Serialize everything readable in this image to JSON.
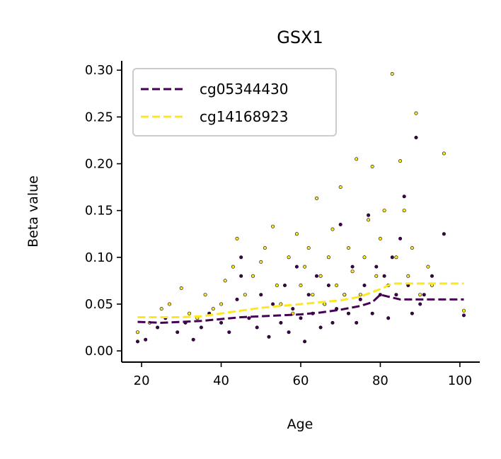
{
  "chart_data": {
    "type": "scatter",
    "title": "GSX1",
    "xlabel": "Age",
    "ylabel": "Beta value",
    "xlim": [
      15,
      105
    ],
    "ylim": [
      -0.012,
      0.31
    ],
    "xticks": [
      20,
      40,
      60,
      80,
      100
    ],
    "xtick_labels": [
      "20",
      "40",
      "60",
      "80",
      "100"
    ],
    "yticks": [
      0.0,
      0.05,
      0.1,
      0.15,
      0.2,
      0.25,
      0.3
    ],
    "ytick_labels": [
      "0.00",
      "0.05",
      "0.10",
      "0.15",
      "0.20",
      "0.25",
      "0.30"
    ],
    "grid": false,
    "legend_position": "top-left",
    "series": [
      {
        "name": "cg05344430",
        "color": "#440154",
        "trend_style": "dashed",
        "trend": [
          [
            19,
            0.031
          ],
          [
            25,
            0.03
          ],
          [
            30,
            0.031
          ],
          [
            35,
            0.032
          ],
          [
            40,
            0.034
          ],
          [
            45,
            0.036
          ],
          [
            50,
            0.037
          ],
          [
            55,
            0.038
          ],
          [
            60,
            0.039
          ],
          [
            65,
            0.041
          ],
          [
            70,
            0.044
          ],
          [
            75,
            0.048
          ],
          [
            78,
            0.052
          ],
          [
            80,
            0.06
          ],
          [
            82,
            0.058
          ],
          [
            85,
            0.055
          ],
          [
            90,
            0.055
          ],
          [
            95,
            0.055
          ],
          [
            101,
            0.055
          ]
        ],
        "points": [
          [
            19,
            0.01
          ],
          [
            21,
            0.012
          ],
          [
            24,
            0.025
          ],
          [
            26,
            0.035
          ],
          [
            29,
            0.02
          ],
          [
            31,
            0.03
          ],
          [
            33,
            0.012
          ],
          [
            35,
            0.025
          ],
          [
            37,
            0.04
          ],
          [
            40,
            0.03
          ],
          [
            42,
            0.02
          ],
          [
            44,
            0.055
          ],
          [
            45,
            0.08
          ],
          [
            45,
            0.1
          ],
          [
            47,
            0.035
          ],
          [
            49,
            0.025
          ],
          [
            50,
            0.06
          ],
          [
            52,
            0.015
          ],
          [
            53,
            0.05
          ],
          [
            55,
            0.03
          ],
          [
            56,
            0.07
          ],
          [
            57,
            0.02
          ],
          [
            58,
            0.045
          ],
          [
            59,
            0.09
          ],
          [
            60,
            0.035
          ],
          [
            61,
            0.01
          ],
          [
            62,
            0.06
          ],
          [
            63,
            0.04
          ],
          [
            64,
            0.08
          ],
          [
            65,
            0.025
          ],
          [
            66,
            0.05
          ],
          [
            67,
            0.07
          ],
          [
            68,
            0.03
          ],
          [
            69,
            0.045
          ],
          [
            70,
            0.135
          ],
          [
            71,
            0.06
          ],
          [
            72,
            0.04
          ],
          [
            73,
            0.09
          ],
          [
            74,
            0.03
          ],
          [
            75,
            0.055
          ],
          [
            76,
            0.07
          ],
          [
            77,
            0.145
          ],
          [
            78,
            0.04
          ],
          [
            79,
            0.09
          ],
          [
            80,
            0.06
          ],
          [
            81,
            0.08
          ],
          [
            82,
            0.035
          ],
          [
            83,
            0.1
          ],
          [
            84,
            0.06
          ],
          [
            85,
            0.12
          ],
          [
            86,
            0.165
          ],
          [
            87,
            0.07
          ],
          [
            88,
            0.04
          ],
          [
            89,
            0.228
          ],
          [
            90,
            0.05
          ],
          [
            91,
            0.06
          ],
          [
            93,
            0.08
          ],
          [
            96,
            0.125
          ],
          [
            101,
            0.038
          ]
        ]
      },
      {
        "name": "cg14168923",
        "color": "#fde725",
        "trend_style": "dashed",
        "trend": [
          [
            19,
            0.036
          ],
          [
            25,
            0.036
          ],
          [
            30,
            0.036
          ],
          [
            35,
            0.037
          ],
          [
            40,
            0.04
          ],
          [
            45,
            0.043
          ],
          [
            50,
            0.046
          ],
          [
            55,
            0.048
          ],
          [
            60,
            0.05
          ],
          [
            65,
            0.052
          ],
          [
            70,
            0.054
          ],
          [
            75,
            0.058
          ],
          [
            80,
            0.066
          ],
          [
            83,
            0.072
          ],
          [
            90,
            0.072
          ],
          [
            95,
            0.072
          ],
          [
            101,
            0.072
          ]
        ],
        "points": [
          [
            19,
            0.02
          ],
          [
            22,
            0.03
          ],
          [
            25,
            0.045
          ],
          [
            27,
            0.05
          ],
          [
            30,
            0.067
          ],
          [
            32,
            0.04
          ],
          [
            34,
            0.035
          ],
          [
            36,
            0.06
          ],
          [
            38,
            0.045
          ],
          [
            40,
            0.05
          ],
          [
            41,
            0.075
          ],
          [
            43,
            0.09
          ],
          [
            44,
            0.12
          ],
          [
            46,
            0.06
          ],
          [
            48,
            0.08
          ],
          [
            50,
            0.095
          ],
          [
            51,
            0.11
          ],
          [
            53,
            0.133
          ],
          [
            54,
            0.07
          ],
          [
            55,
            0.05
          ],
          [
            57,
            0.1
          ],
          [
            58,
            0.04
          ],
          [
            59,
            0.125
          ],
          [
            60,
            0.07
          ],
          [
            61,
            0.09
          ],
          [
            62,
            0.11
          ],
          [
            63,
            0.06
          ],
          [
            64,
            0.163
          ],
          [
            65,
            0.08
          ],
          [
            66,
            0.05
          ],
          [
            67,
            0.1
          ],
          [
            68,
            0.13
          ],
          [
            69,
            0.07
          ],
          [
            70,
            0.175
          ],
          [
            71,
            0.06
          ],
          [
            72,
            0.11
          ],
          [
            73,
            0.085
          ],
          [
            74,
            0.205
          ],
          [
            75,
            0.06
          ],
          [
            76,
            0.1
          ],
          [
            77,
            0.14
          ],
          [
            78,
            0.197
          ],
          [
            79,
            0.08
          ],
          [
            80,
            0.12
          ],
          [
            81,
            0.15
          ],
          [
            82,
            0.07
          ],
          [
            83,
            0.296
          ],
          [
            84,
            0.1
          ],
          [
            85,
            0.203
          ],
          [
            86,
            0.15
          ],
          [
            87,
            0.08
          ],
          [
            88,
            0.11
          ],
          [
            89,
            0.254
          ],
          [
            90,
            0.06
          ],
          [
            92,
            0.09
          ],
          [
            93,
            0.07
          ],
          [
            96,
            0.211
          ],
          [
            101,
            0.043
          ]
        ]
      }
    ]
  }
}
